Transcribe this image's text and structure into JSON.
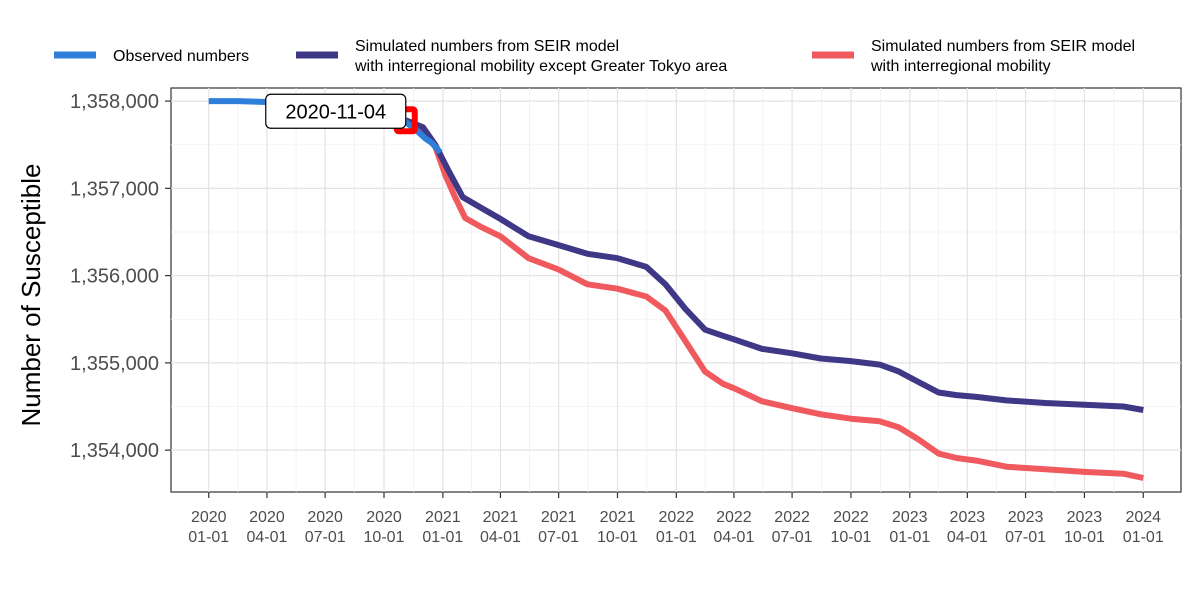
{
  "chart_data": {
    "type": "line",
    "ylabel": "Number of Susceptible",
    "xlabel": "",
    "xlim": [
      "2019-11-03",
      "2024-02-29"
    ],
    "ylim": [
      1353520,
      1358150
    ],
    "grid": true,
    "legend_position": "top",
    "x_ticks": [
      {
        "date": "2020-01-01",
        "label": [
          "2020",
          "01-01"
        ]
      },
      {
        "date": "2020-04-01",
        "label": [
          "2020",
          "04-01"
        ]
      },
      {
        "date": "2020-07-01",
        "label": [
          "2020",
          "07-01"
        ]
      },
      {
        "date": "2020-10-01",
        "label": [
          "2020",
          "10-01"
        ]
      },
      {
        "date": "2021-01-01",
        "label": [
          "2021",
          "01-01"
        ]
      },
      {
        "date": "2021-04-01",
        "label": [
          "2021",
          "04-01"
        ]
      },
      {
        "date": "2021-07-01",
        "label": [
          "2021",
          "07-01"
        ]
      },
      {
        "date": "2021-10-01",
        "label": [
          "2021",
          "10-01"
        ]
      },
      {
        "date": "2022-01-01",
        "label": [
          "2022",
          "01-01"
        ]
      },
      {
        "date": "2022-04-01",
        "label": [
          "2022",
          "04-01"
        ]
      },
      {
        "date": "2022-07-01",
        "label": [
          "2022",
          "07-01"
        ]
      },
      {
        "date": "2022-10-01",
        "label": [
          "2022",
          "10-01"
        ]
      },
      {
        "date": "2023-01-01",
        "label": [
          "2023",
          "01-01"
        ]
      },
      {
        "date": "2023-04-01",
        "label": [
          "2023",
          "04-01"
        ]
      },
      {
        "date": "2023-07-01",
        "label": [
          "2023",
          "07-01"
        ]
      },
      {
        "date": "2023-10-01",
        "label": [
          "2023",
          "10-01"
        ]
      },
      {
        "date": "2024-01-01",
        "label": [
          "2024",
          "01-01"
        ]
      }
    ],
    "y_ticks": [
      {
        "value": 1354000,
        "label": "1,354,000"
      },
      {
        "value": 1355000,
        "label": "1,355,000"
      },
      {
        "value": 1356000,
        "label": "1,356,000"
      },
      {
        "value": 1357000,
        "label": "1,357,000"
      },
      {
        "value": 1358000,
        "label": "1,358,000"
      }
    ],
    "annotation": {
      "label": "2020-11-04",
      "date": "2020-11-04",
      "value": 1357780,
      "marker_color": "#ff0000"
    },
    "series": [
      {
        "name": "Observed numbers",
        "color": "#2e7fd9",
        "x": [
          "2020-01-01",
          "2020-02-15",
          "2020-03-31",
          "2020-05-15",
          "2020-07-01",
          "2020-08-15",
          "2020-10-01",
          "2020-10-20",
          "2020-11-04",
          "2020-11-20",
          "2020-12-05",
          "2020-12-15",
          "2020-12-28"
        ],
        "y": [
          1358000,
          1358000,
          1357990,
          1357970,
          1357950,
          1357920,
          1357880,
          1357830,
          1357760,
          1357670,
          1357570,
          1357520,
          1357410
        ]
      },
      {
        "name": "Simulated numbers from SEIR model\nwith interregional mobility except Greater Tokyo area",
        "color": "#3f3887",
        "x": [
          "2020-11-04",
          "2020-12-01",
          "2020-12-20",
          "2021-01-10",
          "2021-02-01",
          "2021-03-01",
          "2021-04-01",
          "2021-05-15",
          "2021-07-01",
          "2021-08-15",
          "2021-10-01",
          "2021-11-15",
          "2021-12-15",
          "2022-01-15",
          "2022-02-15",
          "2022-03-15",
          "2022-04-01",
          "2022-05-15",
          "2022-07-01",
          "2022-08-15",
          "2022-10-01",
          "2022-11-15",
          "2022-12-15",
          "2023-01-15",
          "2023-02-15",
          "2023-03-15",
          "2023-04-15",
          "2023-06-01",
          "2023-08-01",
          "2023-10-01",
          "2023-12-01",
          "2024-01-01"
        ],
        "y": [
          1357780,
          1357700,
          1357500,
          1357200,
          1356900,
          1356780,
          1356650,
          1356450,
          1356350,
          1356250,
          1356200,
          1356100,
          1355900,
          1355620,
          1355380,
          1355310,
          1355270,
          1355160,
          1355110,
          1355050,
          1355020,
          1354980,
          1354900,
          1354780,
          1354660,
          1354630,
          1354610,
          1354570,
          1354540,
          1354520,
          1354500,
          1354460
        ]
      },
      {
        "name": "Simulated numbers from SEIR model\nwith interregional mobility",
        "color": "#f05a5e",
        "x": [
          "2020-11-04",
          "2020-12-01",
          "2020-12-20",
          "2021-01-05",
          "2021-01-20",
          "2021-02-05",
          "2021-03-01",
          "2021-04-01",
          "2021-05-15",
          "2021-07-01",
          "2021-08-15",
          "2021-10-01",
          "2021-11-15",
          "2021-12-15",
          "2022-01-15",
          "2022-02-15",
          "2022-03-15",
          "2022-04-01",
          "2022-05-15",
          "2022-07-01",
          "2022-08-15",
          "2022-10-01",
          "2022-11-15",
          "2022-12-15",
          "2023-01-15",
          "2023-02-15",
          "2023-03-15",
          "2023-04-15",
          "2023-06-01",
          "2023-08-01",
          "2023-10-01",
          "2023-12-01",
          "2024-01-01"
        ],
        "y": [
          1357780,
          1357690,
          1357480,
          1357150,
          1356900,
          1356660,
          1356560,
          1356450,
          1356200,
          1356070,
          1355900,
          1355850,
          1355760,
          1355600,
          1355250,
          1354900,
          1354760,
          1354710,
          1354560,
          1354480,
          1354410,
          1354360,
          1354330,
          1354260,
          1354120,
          1353960,
          1353910,
          1353880,
          1353810,
          1353780,
          1353750,
          1353730,
          1353680
        ]
      }
    ]
  }
}
